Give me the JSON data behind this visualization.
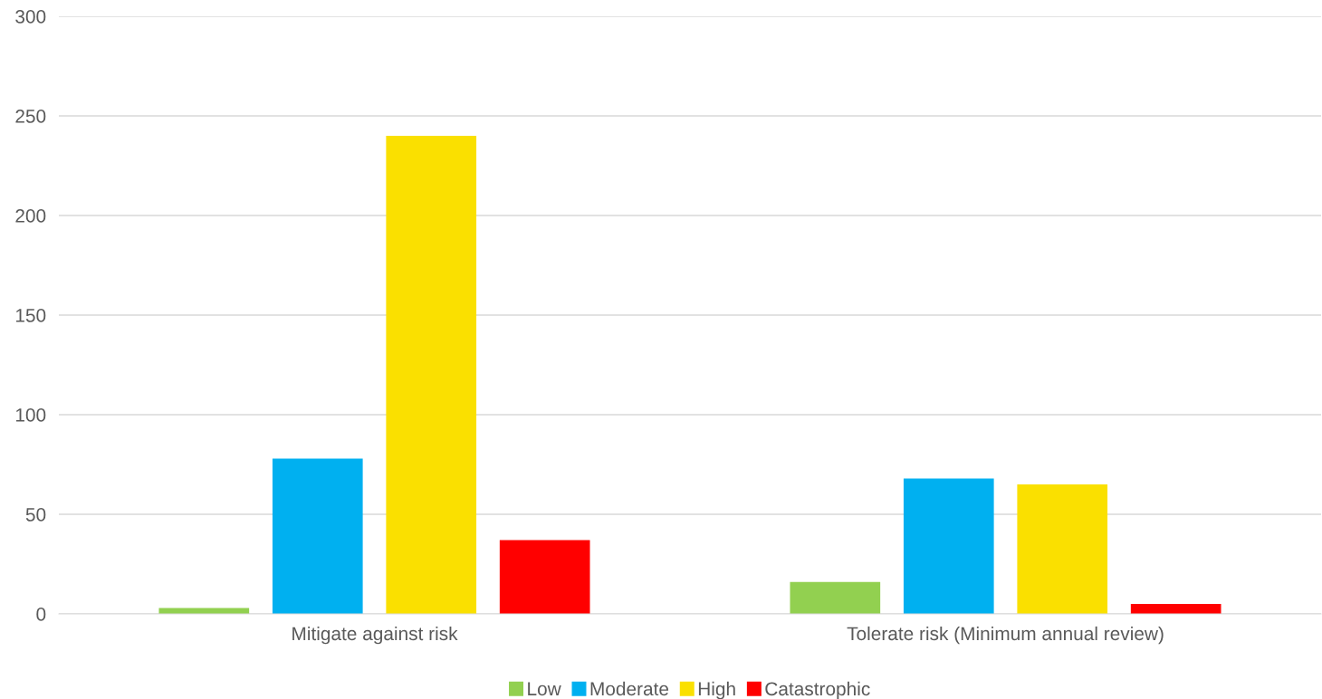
{
  "chart_data": {
    "type": "bar",
    "categories": [
      "Mitigate against risk",
      "Tolerate risk (Minimum annual review)"
    ],
    "series": [
      {
        "name": "Low",
        "color": "#92d050",
        "values": [
          3,
          16
        ]
      },
      {
        "name": "Moderate",
        "color": "#00b0f0",
        "values": [
          78,
          68
        ]
      },
      {
        "name": "High",
        "color": "#fae000",
        "values": [
          240,
          65
        ]
      },
      {
        "name": "Catastrophic",
        "color": "#ff0000",
        "values": [
          37,
          5
        ]
      }
    ],
    "ylim": [
      0,
      300
    ],
    "yticks": [
      0,
      50,
      100,
      150,
      200,
      250,
      300
    ],
    "grid": "y",
    "legend": "bottom"
  }
}
